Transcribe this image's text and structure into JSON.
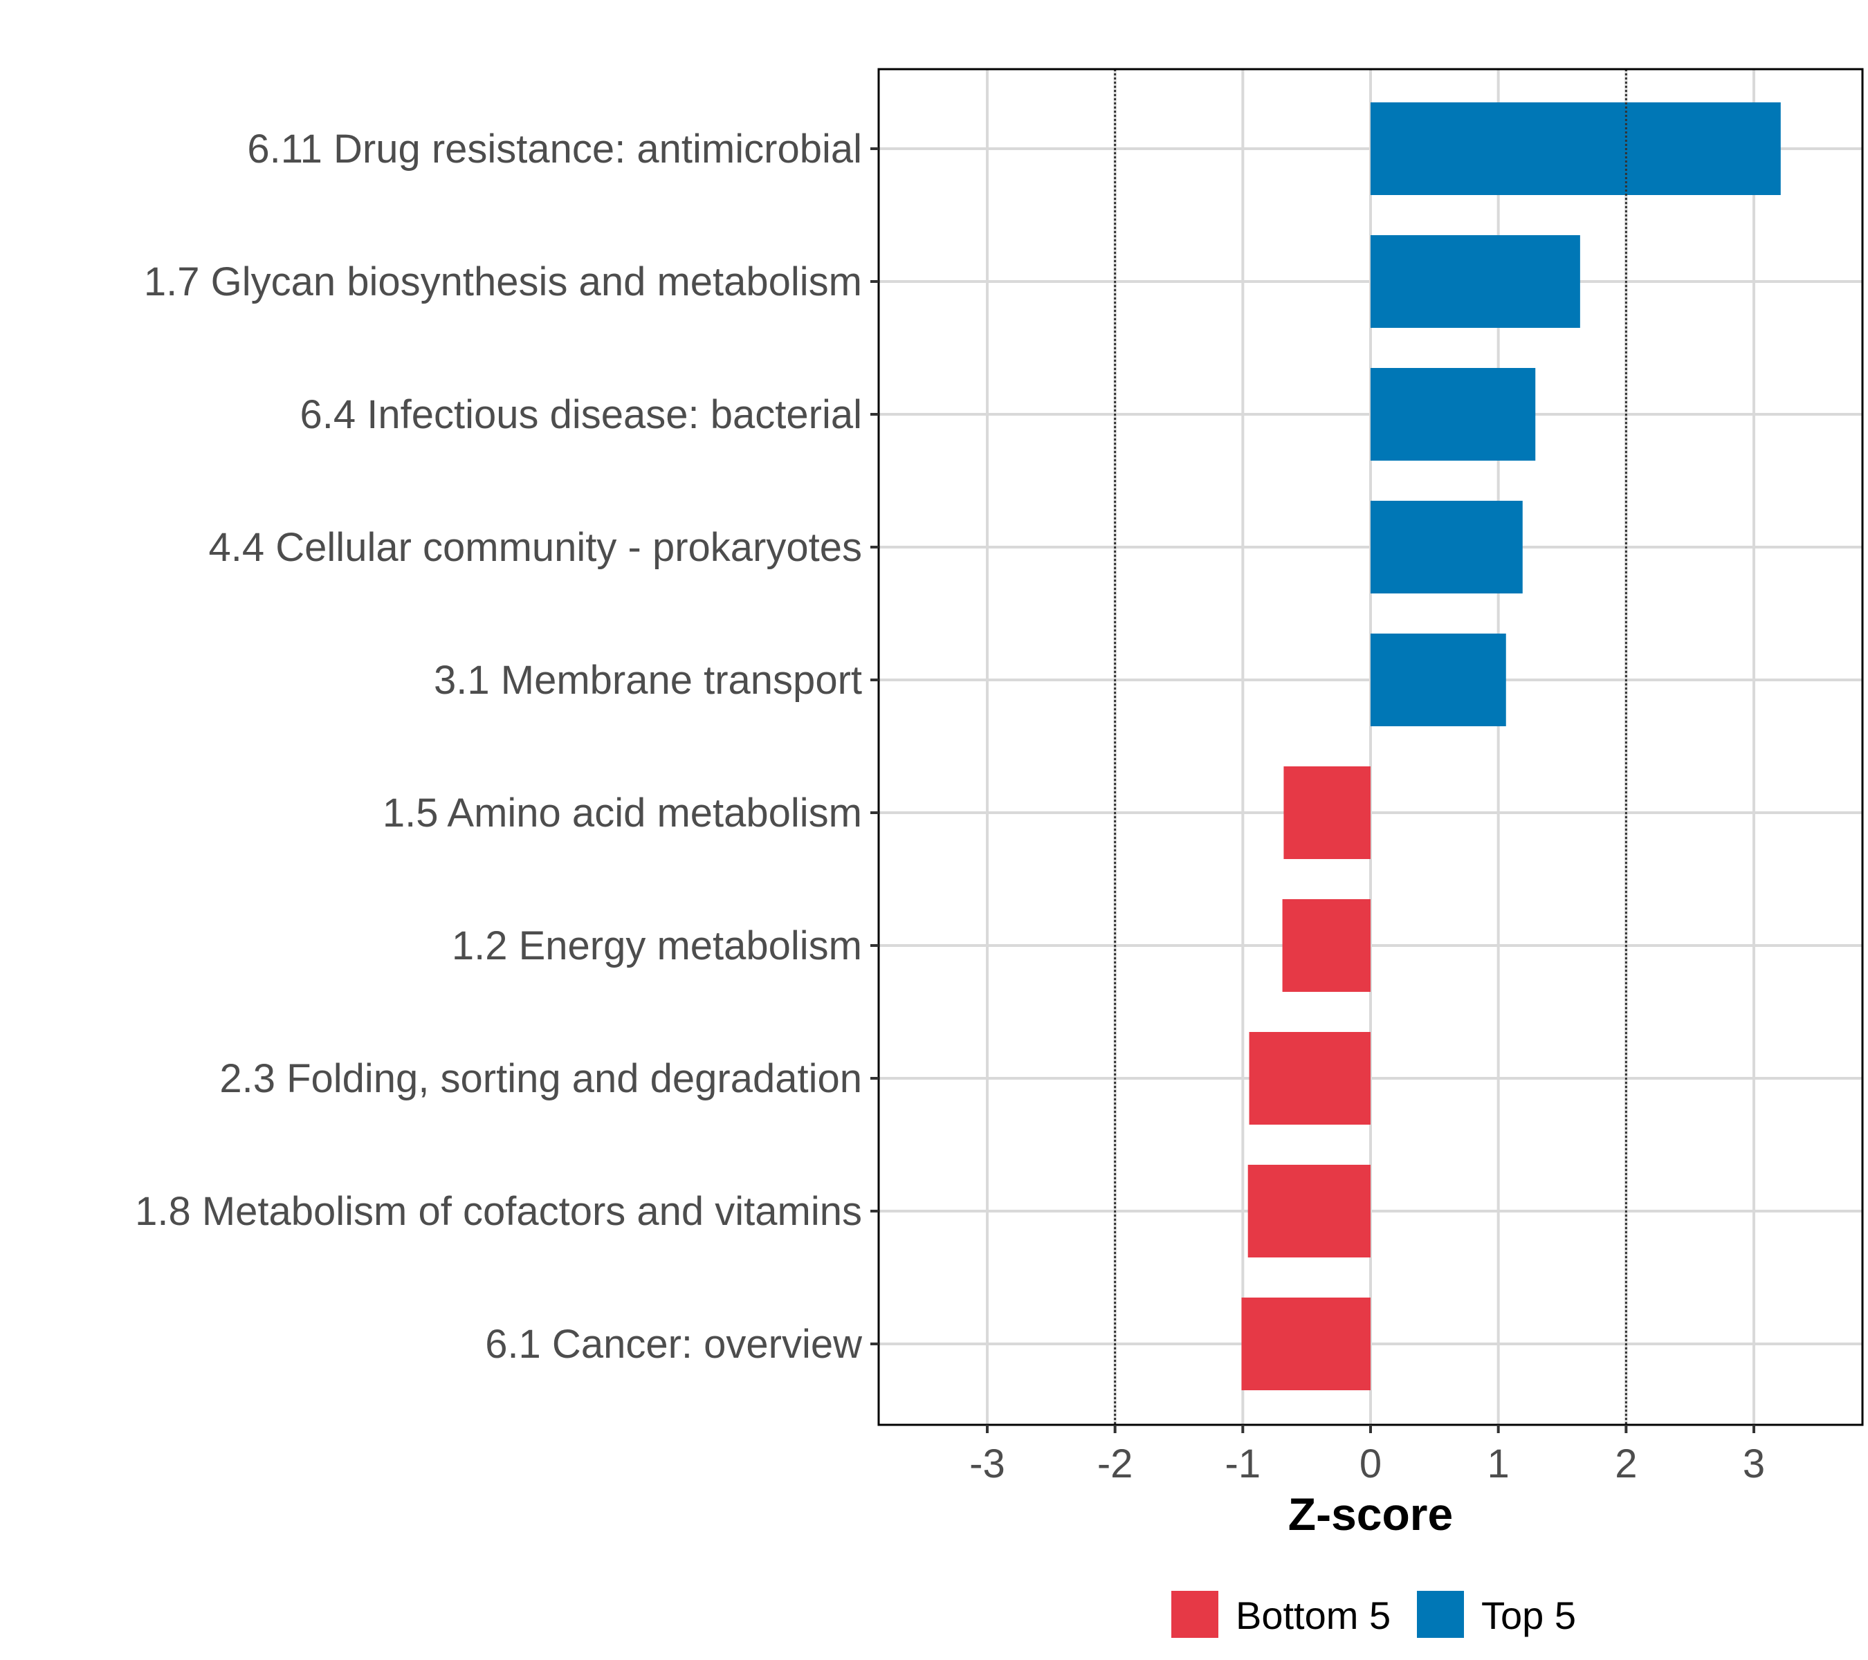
{
  "chart_data": {
    "type": "bar",
    "orientation": "horizontal",
    "title": "",
    "xlabel": "Z-score",
    "ylabel": "",
    "xlim": [
      -3.85,
      3.85
    ],
    "x_ticks": [
      -3,
      -2,
      -1,
      0,
      1,
      2,
      3
    ],
    "x_tick_labels": [
      "-3",
      "-2",
      "-1",
      "0",
      "1",
      "2",
      "3"
    ],
    "reference_lines": [
      -2,
      2
    ],
    "grid": true,
    "categories": [
      "6.11 Drug resistance: antimicrobial",
      "1.7 Glycan biosynthesis and metabolism",
      "6.4 Infectious disease: bacterial",
      "4.4 Cellular community - prokaryotes",
      "3.1 Membrane transport",
      "1.5 Amino acid metabolism",
      "1.2 Energy metabolism",
      "2.3 Folding, sorting and degradation",
      "1.8 Metabolism of cofactors and vitamins",
      "6.1 Cancer: overview"
    ],
    "values": [
      3.21,
      1.64,
      1.29,
      1.19,
      1.06,
      -0.68,
      -0.69,
      -0.95,
      -0.96,
      -1.01
    ],
    "groups": [
      "Top 5",
      "Top 5",
      "Top 5",
      "Top 5",
      "Top 5",
      "Bottom 5",
      "Bottom 5",
      "Bottom 5",
      "Bottom 5",
      "Bottom 5"
    ],
    "legend": {
      "position": "bottom",
      "entries": [
        {
          "label": "Bottom 5",
          "color": "#E63946"
        },
        {
          "label": "Top 5",
          "color": "#0077B6"
        }
      ]
    }
  }
}
